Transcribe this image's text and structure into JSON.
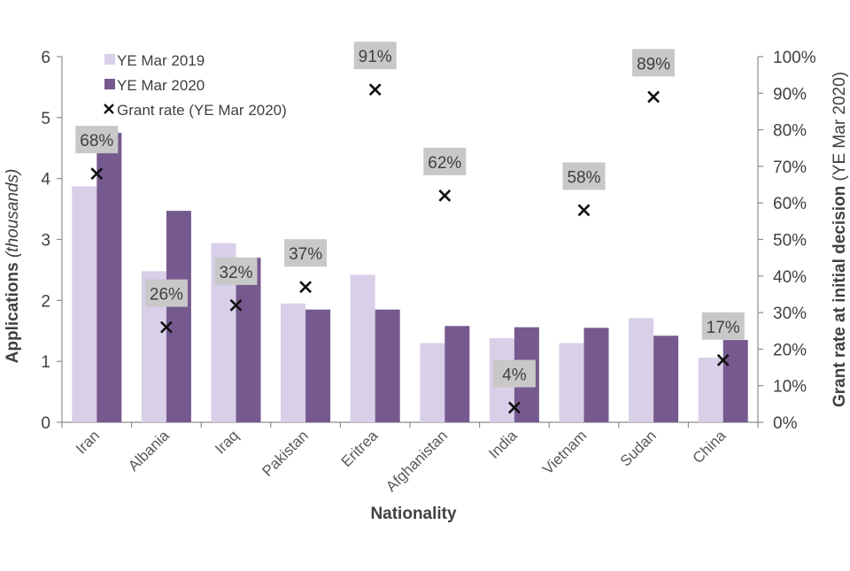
{
  "chart_data": {
    "type": "bar",
    "categories": [
      "Iran",
      "Albania",
      "Iraq",
      "Pakistan",
      "Eritrea",
      "Afghanistan",
      "India",
      "Vietnam",
      "Sudan",
      "China"
    ],
    "series": [
      {
        "name": "YE Mar 2019",
        "kind": "bar",
        "axis": "left",
        "color": "#d9cfe8",
        "values": [
          3.87,
          2.48,
          2.94,
          1.95,
          2.42,
          1.3,
          1.38,
          1.3,
          1.71,
          1.06
        ]
      },
      {
        "name": "YE Mar 2020",
        "kind": "bar",
        "axis": "left",
        "color": "#765a8f",
        "values": [
          4.75,
          3.47,
          2.7,
          1.85,
          1.85,
          1.58,
          1.56,
          1.55,
          1.42,
          1.35
        ]
      },
      {
        "name": "Grant rate (YE Mar 2020)",
        "kind": "scatter",
        "axis": "right",
        "marker": "×",
        "values": [
          68,
          26,
          32,
          37,
          91,
          62,
          4,
          58,
          89,
          17
        ],
        "labels": [
          "68%",
          "26%",
          "32%",
          "37%",
          "91%",
          "62%",
          "4%",
          "58%",
          "89%",
          "17%"
        ]
      }
    ],
    "xlabel": "Nationality",
    "ylabel_main": "Applications",
    "ylabel_unit": "(thousands)",
    "y2label_main": "Grant rate at initial decision",
    "y2label_unit": "(YE Mar 2020)",
    "ylim": [
      0,
      6
    ],
    "yticks": [
      "0",
      "1",
      "2",
      "3",
      "4",
      "5",
      "6"
    ],
    "y2lim": [
      0,
      100
    ],
    "y2ticks": [
      "0%",
      "10%",
      "20%",
      "30%",
      "40%",
      "50%",
      "60%",
      "70%",
      "80%",
      "90%",
      "100%"
    ],
    "legend_position": "top-left"
  }
}
